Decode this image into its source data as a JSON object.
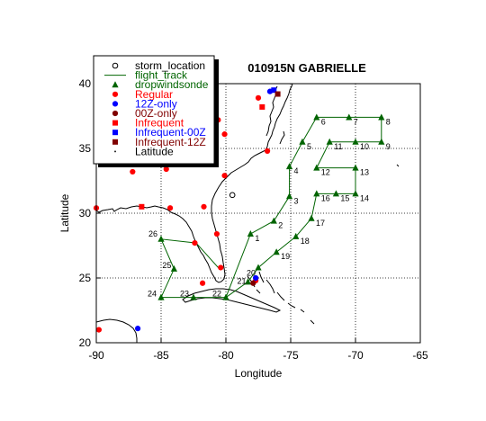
{
  "chart_data": {
    "type": "scatter",
    "title": "010915N GABRIELLE",
    "xlabel": "Longitude",
    "ylabel": "Latitude",
    "xlim": [
      -90,
      -65
    ],
    "ylim": [
      20,
      40
    ],
    "xticks": [
      "-90",
      "-85",
      "-80",
      "-75",
      "-70",
      "-65"
    ],
    "yticks": [
      "20",
      "25",
      "30",
      "35",
      "40"
    ],
    "grid": true,
    "legend_position": "top-left",
    "legend": [
      {
        "label": "storm_location",
        "marker": "open-circle",
        "color": "#000000"
      },
      {
        "label": "flight_track",
        "marker": "line",
        "color": "#006400"
      },
      {
        "label": "dropwindsonde",
        "marker": "triangle",
        "color": "#006400"
      },
      {
        "label": "Regular",
        "marker": "circle",
        "color": "#ff0000"
      },
      {
        "label": "12Z-only",
        "marker": "circle",
        "color": "#0000ff"
      },
      {
        "label": "00Z-only",
        "marker": "circle",
        "color": "#800000"
      },
      {
        "label": "Infrequent",
        "marker": "square",
        "color": "#ff0000"
      },
      {
        "label": "Infrequent-00Z",
        "marker": "square",
        "color": "#0000ff"
      },
      {
        "label": "Infrequent-12Z",
        "marker": "square",
        "color": "#800000"
      },
      {
        "label": "Latitude",
        "marker": "dot",
        "color": "#000000"
      }
    ],
    "storm_location": {
      "lon": -79.5,
      "lat": 31.4
    },
    "flight_track": [
      {
        "label": "",
        "lon": -80.0,
        "lat": 23.5
      },
      {
        "label": "1",
        "lon": -78.1,
        "lat": 28.4
      },
      {
        "label": "2",
        "lon": -76.3,
        "lat": 29.4
      },
      {
        "label": "3",
        "lon": -75.1,
        "lat": 31.3
      },
      {
        "label": "4",
        "lon": -75.1,
        "lat": 33.6
      },
      {
        "label": "5",
        "lon": -74.1,
        "lat": 35.5
      },
      {
        "label": "6",
        "lon": -73.0,
        "lat": 37.4
      },
      {
        "label": "7",
        "lon": -70.5,
        "lat": 37.4
      },
      {
        "label": "8",
        "lon": -68.0,
        "lat": 37.4
      },
      {
        "label": "9",
        "lon": -68.0,
        "lat": 35.5
      },
      {
        "label": "10",
        "lon": -70.0,
        "lat": 35.5
      },
      {
        "label": "11",
        "lon": -72.0,
        "lat": 35.5
      },
      {
        "label": "12",
        "lon": -73.0,
        "lat": 33.5
      },
      {
        "label": "13",
        "lon": -70.0,
        "lat": 33.5
      },
      {
        "label": "14",
        "lon": -70.0,
        "lat": 31.5
      },
      {
        "label": "15",
        "lon": -71.5,
        "lat": 31.5
      },
      {
        "label": "16",
        "lon": -73.0,
        "lat": 31.5
      },
      {
        "label": "17",
        "lon": -73.4,
        "lat": 29.6
      },
      {
        "label": "18",
        "lon": -74.6,
        "lat": 28.2
      },
      {
        "label": "19",
        "lon": -76.1,
        "lat": 27.0
      },
      {
        "label": "20",
        "lon": -77.5,
        "lat": 25.8
      },
      {
        "label": "21",
        "lon": -78.3,
        "lat": 24.7
      },
      {
        "label": "22",
        "lon": -80.0,
        "lat": 23.5
      },
      {
        "label": "23",
        "lon": -82.5,
        "lat": 23.5
      },
      {
        "label": "24",
        "lon": -85.0,
        "lat": 23.5
      },
      {
        "label": "25",
        "lon": -84.0,
        "lat": 25.7
      },
      {
        "label": "26",
        "lon": -85.0,
        "lat": 28.0
      },
      {
        "label": "",
        "lon": -82.3,
        "lat": 27.7
      },
      {
        "label": "",
        "lon": -80.5,
        "lat": 25.7
      }
    ],
    "stations": [
      {
        "kind": "Regular",
        "lon": -90.0,
        "lat": 30.4
      },
      {
        "kind": "Regular",
        "lon": -84.3,
        "lat": 30.4
      },
      {
        "kind": "Regular",
        "lon": -81.7,
        "lat": 30.5
      },
      {
        "kind": "Regular",
        "lon": -80.7,
        "lat": 28.4
      },
      {
        "kind": "Regular",
        "lon": -82.4,
        "lat": 27.7
      },
      {
        "kind": "Regular",
        "lon": -80.4,
        "lat": 25.8
      },
      {
        "kind": "Regular",
        "lon": -81.8,
        "lat": 24.6
      },
      {
        "kind": "Regular",
        "lon": -89.8,
        "lat": 21.0
      },
      {
        "kind": "Regular",
        "lon": -87.2,
        "lat": 33.2
      },
      {
        "kind": "Regular",
        "lon": -84.6,
        "lat": 33.4
      },
      {
        "kind": "Regular",
        "lon": -81.8,
        "lat": 34.0
      },
      {
        "kind": "Regular",
        "lon": -80.1,
        "lat": 32.9
      },
      {
        "kind": "Regular",
        "lon": -80.1,
        "lat": 36.1
      },
      {
        "kind": "Regular",
        "lon": -80.6,
        "lat": 37.2
      },
      {
        "kind": "Regular",
        "lon": -77.5,
        "lat": 38.9
      },
      {
        "kind": "Regular",
        "lon": -76.8,
        "lat": 34.8
      },
      {
        "kind": "Regular",
        "lon": -77.7,
        "lat": 24.8
      },
      {
        "kind": "12Z-only",
        "lon": -86.8,
        "lat": 21.1
      },
      {
        "kind": "12Z-only",
        "lon": -76.6,
        "lat": 39.4
      },
      {
        "kind": "12Z-only",
        "lon": -77.7,
        "lat": 25.0
      },
      {
        "kind": "Infrequent",
        "lon": -86.5,
        "lat": 30.5
      },
      {
        "kind": "Infrequent",
        "lon": -77.2,
        "lat": 38.2
      },
      {
        "kind": "Infrequent-00Z",
        "lon": -76.3,
        "lat": 39.5
      },
      {
        "kind": "Infrequent-12Z",
        "lon": -76.0,
        "lat": 39.2
      },
      {
        "kind": "00Z-only",
        "lon": -77.9,
        "lat": 24.6
      }
    ]
  }
}
